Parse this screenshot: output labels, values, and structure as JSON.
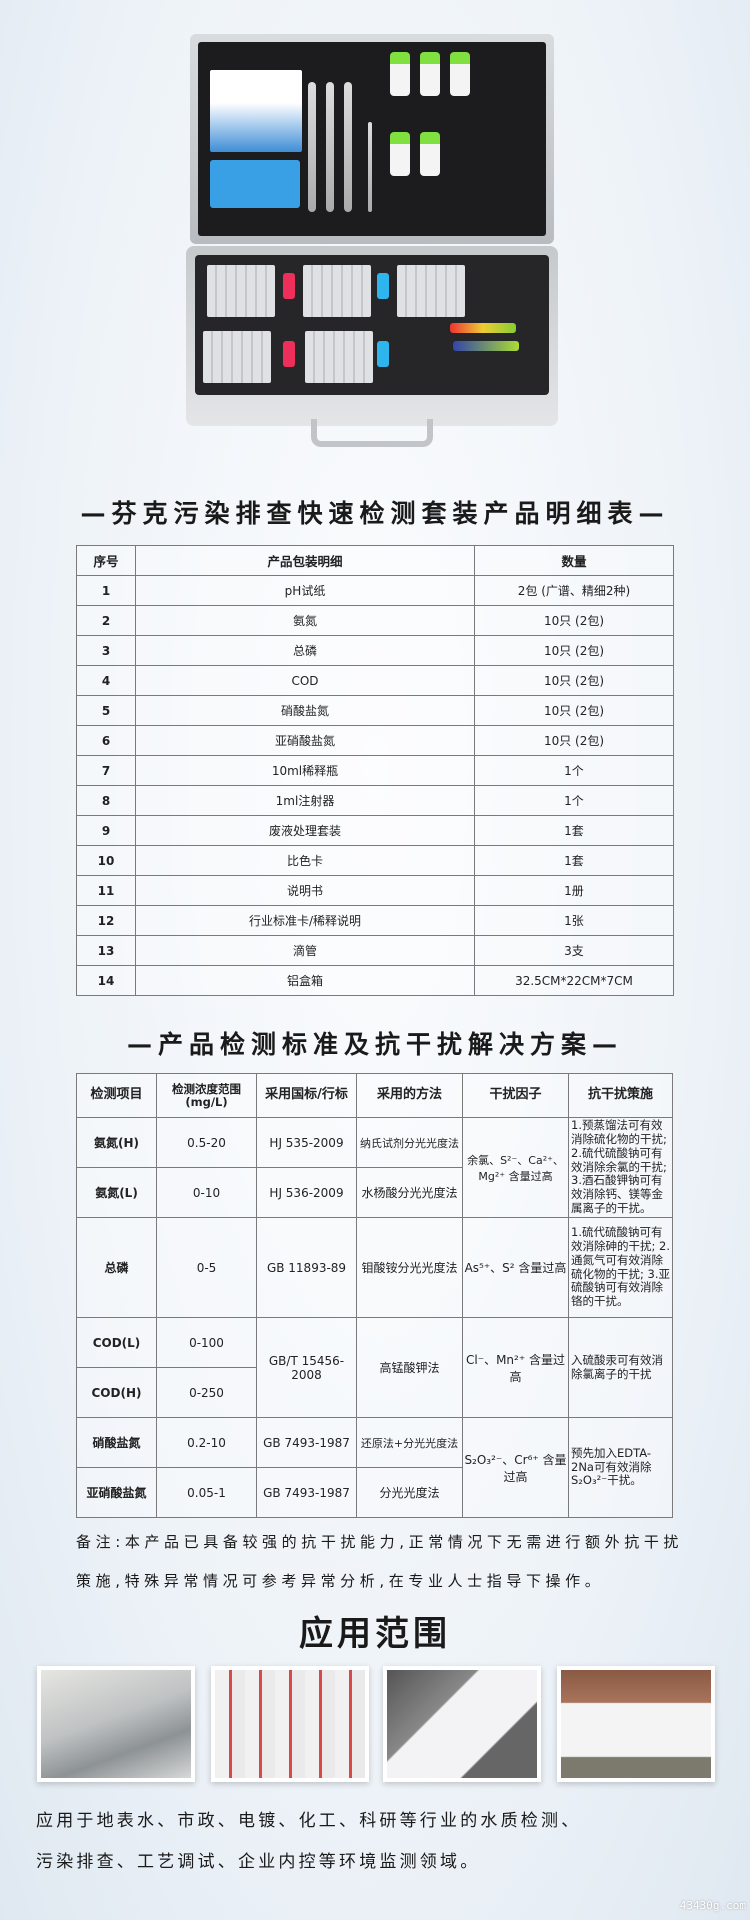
{
  "kit_table": {
    "title": "—芬克污染排查快速检测套装产品明细表—",
    "headers": [
      "序号",
      "产品包装明细",
      "数量"
    ],
    "rows": [
      [
        "1",
        "pH试纸",
        "2包 (广谱、精细2种)"
      ],
      [
        "2",
        "氨氮",
        "10只 (2包)"
      ],
      [
        "3",
        "总磷",
        "10只 (2包)"
      ],
      [
        "4",
        "COD",
        "10只 (2包)"
      ],
      [
        "5",
        "硝酸盐氮",
        "10只 (2包)"
      ],
      [
        "6",
        "亚硝酸盐氮",
        "10只 (2包)"
      ],
      [
        "7",
        "10ml稀释瓶",
        "1个"
      ],
      [
        "8",
        "1ml注射器",
        "1个"
      ],
      [
        "9",
        "废液处理套装",
        "1套"
      ],
      [
        "10",
        "比色卡",
        "1套"
      ],
      [
        "11",
        "说明书",
        "1册"
      ],
      [
        "12",
        "行业标准卡/稀释说明",
        "1张"
      ],
      [
        "13",
        "滴管",
        "3支"
      ],
      [
        "14",
        "铝盒箱",
        "32.5CM*22CM*7CM"
      ]
    ]
  },
  "standards_table": {
    "title": "—产品检测标准及抗干扰解决方案—",
    "headers": [
      "检测项目",
      "检测浓度范围 (mg/L)",
      "采用国标/行标",
      "采用的方法",
      "干扰因子",
      "抗干扰策施"
    ],
    "items": [
      {
        "item": "氨氮(H)",
        "range": "0.5-20",
        "standard": "HJ 535-2009",
        "method": "纳氏试剂分光光度法"
      },
      {
        "item": "氨氮(L)",
        "range": "0-10",
        "standard": "HJ 536-2009",
        "method": "水杨酸分光光度法"
      },
      {
        "item": "总磷",
        "range": "0-5",
        "standard": "GB 11893-89",
        "method": "钼酸铵分光光度法"
      },
      {
        "item": "COD(L)",
        "range": "0-100"
      },
      {
        "item": "COD(H)",
        "range": "0-250"
      },
      {
        "item": "硝酸盐氮",
        "range": "0.2-10",
        "standard": "GB 7493-1987",
        "method": "还原法+分光光度法"
      },
      {
        "item": "亚硝酸盐氮",
        "range": "0.05-1",
        "standard": "GB 7493-1987",
        "method": "分光光度法"
      }
    ],
    "cod_standard": "GB/T 15456-2008",
    "cod_method": "高锰酸钾法",
    "interference": {
      "ammonia": "余氯、S²⁻、Ca²⁺、Mg²⁺ 含量过高",
      "phosphorus": "As⁵⁺、S² 含量过高",
      "cod": "Cl⁻、Mn²⁺ 含量过高",
      "nitrogen": "S₂O₃²⁻、Cr⁶⁺ 含量过高"
    },
    "measures": {
      "ammonia": "1.预蒸馏法可有效消除硫化物的干扰; 2.硫代硫酸钠可有效消除余氯的干扰; 3.酒石酸钾钠可有效消除钙、镁等金属离子的干扰。",
      "phosphorus": "1.硫代硫酸钠可有效消除砷的干扰; 2.通氮气可有效消除硫化物的干扰; 3.亚硫酸钠可有效消除铬的干扰。",
      "cod": "入硫酸汞可有效消除氯离子的干扰",
      "nitrogen": "预先加入EDTA-2Na可有效消除S₂O₃²⁻干扰。"
    }
  },
  "note": {
    "line1": "备注:本产品已具备较强的抗干扰能力,正常情况下无需进行额外抗干扰",
    "line2": "策施,特殊异常情况可参考异常分析,在专业人士指导下操作。"
  },
  "application": {
    "title": "应用范围",
    "line1": "应用于地表水、市政、电镀、化工、科研等行业的水质检测、",
    "line2": "污染排查、工艺调试、企业内控等环境监测领域。"
  },
  "watermark": "43430g.com"
}
